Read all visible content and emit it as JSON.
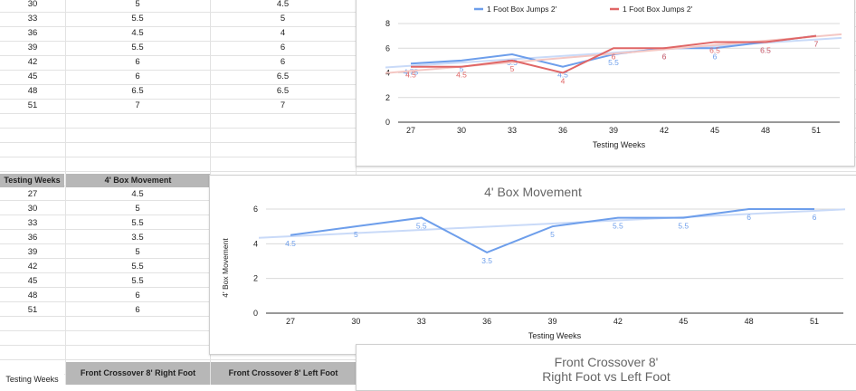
{
  "top_table": {
    "rows": [
      [
        "30",
        "5",
        "4.5"
      ],
      [
        "33",
        "5.5",
        "5"
      ],
      [
        "36",
        "4.5",
        "4"
      ],
      [
        "39",
        "5.5",
        "6"
      ],
      [
        "42",
        "6",
        "6"
      ],
      [
        "45",
        "6",
        "6.5"
      ],
      [
        "48",
        "6.5",
        "6.5"
      ],
      [
        "51",
        "7",
        "7"
      ]
    ]
  },
  "mid_table": {
    "header_weeks": "Testing Weeks",
    "header_value": "4' Box Movement",
    "rows": [
      [
        "27",
        "4.5"
      ],
      [
        "30",
        "5"
      ],
      [
        "33",
        "5.5"
      ],
      [
        "36",
        "3.5"
      ],
      [
        "39",
        "5"
      ],
      [
        "42",
        "5.5"
      ],
      [
        "45",
        "5.5"
      ],
      [
        "48",
        "6"
      ],
      [
        "51",
        "6"
      ]
    ]
  },
  "bottom_table": {
    "header_weeks": "Testing Weeks",
    "header_right": "Front Crossover 8' Right Foot",
    "header_left": "Front Crossover 8' Left Foot"
  },
  "colors": {
    "blue": "#6d9eeb",
    "red": "#e06666",
    "blue_trend": "#c9daf8",
    "red_trend": "#f4c7c3"
  },
  "chart_data": [
    {
      "type": "line",
      "title": "",
      "xlabel": "Testing Weeks",
      "ylabel": "",
      "x": [
        27,
        30,
        33,
        36,
        39,
        42,
        45,
        48,
        51
      ],
      "ylim": [
        0,
        8
      ],
      "yticks": [
        0,
        2,
        4,
        6,
        8
      ],
      "legend": "top",
      "series": [
        {
          "name": "1 Foot Box Jumps 2'",
          "color": "#6d9eeb",
          "values": [
            4.75,
            5,
            5.5,
            4.5,
            5.5,
            6,
            6,
            6.5,
            7
          ],
          "labels": [
            "4.75",
            "5",
            "5.5",
            "4.5",
            "5.5",
            "6",
            "6",
            "6.5",
            "7"
          ]
        },
        {
          "name": "1 Foot Box Jumps 2'",
          "color": "#e06666",
          "values": [
            4.5,
            4.5,
            5,
            4,
            6,
            6,
            6.5,
            6.5,
            7
          ],
          "labels": [
            "4.5",
            "4.5",
            "5",
            "4",
            "6",
            "6",
            "6.5",
            "6.5",
            "7"
          ]
        }
      ]
    },
    {
      "type": "line",
      "title": "4' Box Movement",
      "xlabel": "Testing Weeks",
      "ylabel": "4' Box Movement",
      "x": [
        27,
        30,
        33,
        36,
        39,
        42,
        45,
        48,
        51
      ],
      "ylim": [
        0,
        6
      ],
      "yticks": [
        0,
        2,
        4,
        6
      ],
      "series": [
        {
          "name": "",
          "color": "#6d9eeb",
          "values": [
            4.5,
            5,
            5.5,
            3.5,
            5,
            5.5,
            5.5,
            6,
            6
          ],
          "labels": [
            "4.5",
            "5",
            "5.5",
            "3.5",
            "5",
            "5.5",
            "5.5",
            "6",
            "6"
          ]
        }
      ]
    },
    {
      "type": "line",
      "title": "Front Crossover 8'",
      "subtitle": "Right Foot vs Left Foot",
      "series": []
    }
  ]
}
